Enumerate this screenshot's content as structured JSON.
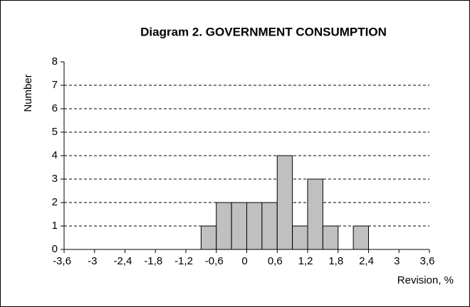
{
  "chart_data": {
    "type": "histogram",
    "title": "Diagram 2.  GOVERNMENT CONSUMPTION",
    "x_label": "Revision, %",
    "y_label": "Number",
    "bins": [
      -0.9,
      -0.6,
      -0.3,
      0,
      0.3,
      0.6,
      0.9,
      1.2,
      1.5,
      1.8,
      2.1,
      2.4
    ],
    "values": [
      1,
      2,
      2,
      2,
      2,
      4,
      1,
      3,
      1,
      0,
      1
    ],
    "color": "#c0c0c0",
    "xlim": [
      -3.6,
      3.6
    ],
    "xticks": [
      {
        "value": -3.6,
        "label": "-3,6"
      },
      -3,
      {
        "value": -2.4,
        "label": "-2,4"
      },
      {
        "value": -1.8,
        "label": "-1,8"
      },
      {
        "value": -1.2,
        "label": "-1,2"
      },
      {
        "value": -0.6,
        "label": "-0,6"
      },
      0,
      {
        "value": 0.6,
        "label": "0,6"
      },
      {
        "value": 1.2,
        "label": "1,2"
      },
      {
        "value": 1.8,
        "label": "1,8"
      },
      {
        "value": 2.4,
        "label": "2,4"
      },
      3,
      {
        "value": 3.6,
        "label": "3,6"
      }
    ],
    "ylim": [
      0,
      8
    ],
    "yticks": [
      0,
      1,
      2,
      3,
      4,
      5,
      6,
      7,
      8
    ],
    "grid": true
  }
}
